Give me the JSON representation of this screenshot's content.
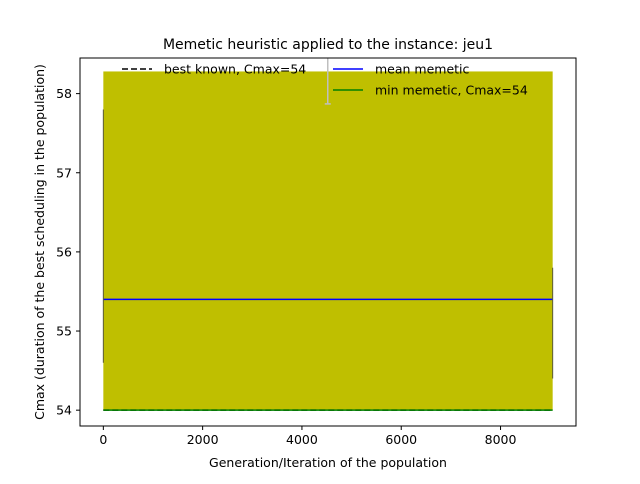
{
  "chart_data": {
    "type": "line",
    "title": "Memetic heuristic applied to the instance: jeu1",
    "xlabel": "Generation/Iteration of the population",
    "ylabel": "Cmax (duration of the best scheduling in the population)",
    "xlim": [
      -470,
      9520
    ],
    "ylim": [
      53.8,
      58.45
    ],
    "x_ticks": [
      0,
      2000,
      4000,
      6000,
      8000
    ],
    "y_ticks": [
      54,
      55,
      56,
      57,
      58
    ],
    "grid": false,
    "legend_placement": "top",
    "legend": [
      {
        "label": "best known, Cmax=54",
        "color": "#000000",
        "style": "dashed"
      },
      {
        "label": "mean memetic",
        "color": "#0000ff",
        "style": "solid"
      },
      {
        "label": "min memetic, Cmax=54",
        "color": "#008000",
        "style": "solid"
      }
    ],
    "series": [
      {
        "name": "best known, Cmax=54",
        "color": "#000000",
        "style": "dashed",
        "x": [
          0,
          9050
        ],
        "y": [
          54,
          54
        ]
      },
      {
        "name": "mean memetic",
        "color": "#0000ff",
        "style": "solid",
        "x": [
          0,
          9050
        ],
        "y": [
          55.4,
          55.4
        ]
      },
      {
        "name": "min memetic, Cmax=54",
        "color": "#008000",
        "style": "solid",
        "x": [
          0,
          9050
        ],
        "y": [
          54,
          54
        ]
      }
    ],
    "error_band": {
      "color": "#bfbf00",
      "x_range": [
        0,
        9050
      ],
      "y_range": [
        54.0,
        58.28
      ]
    },
    "error_bar": {
      "color": "#bfbfbf",
      "x": 4520,
      "y_range": [
        57.87,
        58.45
      ]
    }
  }
}
